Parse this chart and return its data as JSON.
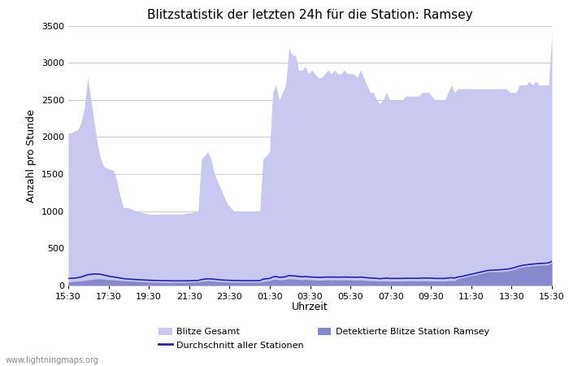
{
  "title": "Blitzstatistik der letzten 24h für die Station: Ramsey",
  "xlabel": "Uhrzeit",
  "ylabel": "Anzahl pro Stunde",
  "xlabels": [
    "15:30",
    "17:30",
    "19:30",
    "21:30",
    "23:30",
    "01:30",
    "03:30",
    "05:30",
    "07:30",
    "09:30",
    "11:30",
    "13:30",
    "15:30"
  ],
  "ylim": [
    0,
    3500
  ],
  "yticks": [
    0,
    500,
    1000,
    1500,
    2000,
    2500,
    3000,
    3500
  ],
  "background_color": "#ffffff",
  "grid_color": "#cccccc",
  "area_total_color": "#c8c8f0",
  "area_station_color": "#8888cc",
  "line_color": "#2222bb",
  "watermark": "www.lightningmaps.org",
  "legend": {
    "blitze_gesamt": "Blitze Gesamt",
    "durchschnitt": "Durchschnitt aller Stationen",
    "detektierte": "Detektierte Blitze Station Ramsey"
  },
  "total_values": [
    2050,
    2060,
    2080,
    2100,
    2200,
    2400,
    2800,
    2500,
    2200,
    1900,
    1700,
    1600,
    1580,
    1560,
    1550,
    1400,
    1200,
    1050,
    1050,
    1040,
    1020,
    1000,
    990,
    980,
    970,
    960,
    960,
    960,
    960,
    960,
    960,
    960,
    960,
    960,
    960,
    960,
    970,
    980,
    980,
    990,
    1000,
    1700,
    1750,
    1800,
    1700,
    1500,
    1400,
    1300,
    1200,
    1100,
    1050,
    1000,
    1000,
    1000,
    1000,
    1000,
    1000,
    1000,
    1000,
    1000,
    1700,
    1750,
    1800,
    2600,
    2700,
    2500,
    2600,
    2700,
    3200,
    3100,
    3100,
    2900,
    2900,
    2950,
    2850,
    2900,
    2850,
    2800,
    2800,
    2850,
    2900,
    2850,
    2900,
    2850,
    2850,
    2900,
    2850,
    2850,
    2850,
    2800,
    2900,
    2800,
    2700,
    2600,
    2600,
    2500,
    2450,
    2500,
    2600,
    2500,
    2500,
    2500,
    2500,
    2500,
    2550,
    2550,
    2550,
    2550,
    2550,
    2600,
    2600,
    2600,
    2550,
    2500,
    2500,
    2500,
    2500,
    2600,
    2700,
    2600,
    2650,
    2650,
    2650,
    2650,
    2650,
    2650,
    2650,
    2650,
    2650,
    2650,
    2650,
    2650,
    2650,
    2650,
    2650,
    2650,
    2600,
    2600,
    2600,
    2700,
    2700,
    2700,
    2750,
    2700,
    2750,
    2700,
    2700,
    2700,
    2700,
    3400
  ],
  "station_values": [
    50,
    52,
    55,
    58,
    62,
    68,
    75,
    80,
    85,
    88,
    90,
    85,
    80,
    78,
    75,
    72,
    68,
    65,
    62,
    60,
    58,
    55,
    52,
    50,
    48,
    46,
    45,
    44,
    43,
    42,
    42,
    42,
    42,
    42,
    42,
    42,
    43,
    44,
    45,
    46,
    48,
    55,
    60,
    65,
    62,
    58,
    54,
    50,
    48,
    46,
    45,
    44,
    44,
    44,
    44,
    44,
    44,
    44,
    44,
    44,
    55,
    60,
    65,
    80,
    85,
    75,
    78,
    82,
    90,
    88,
    85,
    80,
    78,
    80,
    78,
    76,
    74,
    72,
    72,
    74,
    76,
    74,
    76,
    74,
    74,
    76,
    74,
    74,
    74,
    72,
    76,
    72,
    68,
    64,
    64,
    60,
    58,
    60,
    64,
    60,
    60,
    60,
    60,
    60,
    62,
    62,
    62,
    62,
    62,
    64,
    64,
    64,
    62,
    60,
    60,
    60,
    60,
    64,
    68,
    64,
    90,
    100,
    110,
    120,
    130,
    140,
    150,
    160,
    170,
    180,
    185,
    185,
    185,
    185,
    190,
    195,
    200,
    210,
    225,
    240,
    250,
    255,
    260,
    265,
    270,
    275,
    275,
    275,
    280,
    310
  ],
  "avg_values": [
    95,
    97,
    100,
    105,
    115,
    130,
    145,
    150,
    155,
    155,
    150,
    140,
    130,
    120,
    115,
    108,
    100,
    92,
    88,
    85,
    82,
    80,
    78,
    75,
    72,
    70,
    68,
    67,
    66,
    65,
    64,
    63,
    62,
    62,
    62,
    62,
    62,
    63,
    64,
    65,
    67,
    80,
    85,
    90,
    88,
    84,
    80,
    75,
    72,
    70,
    68,
    67,
    66,
    65,
    65,
    65,
    65,
    65,
    65,
    65,
    85,
    90,
    95,
    115,
    120,
    110,
    112,
    118,
    135,
    130,
    128,
    120,
    118,
    120,
    116,
    114,
    112,
    110,
    110,
    112,
    114,
    112,
    114,
    112,
    112,
    114,
    112,
    112,
    112,
    110,
    114,
    110,
    105,
    100,
    100,
    95,
    92,
    95,
    100,
    95,
    95,
    95,
    95,
    95,
    97,
    97,
    97,
    97,
    97,
    100,
    100,
    100,
    97,
    95,
    95,
    95,
    95,
    100,
    105,
    100,
    115,
    120,
    130,
    140,
    150,
    160,
    170,
    180,
    190,
    200,
    205,
    207,
    210,
    212,
    215,
    220,
    225,
    235,
    248,
    262,
    272,
    278,
    283,
    288,
    292,
    296,
    298,
    300,
    305,
    325
  ]
}
